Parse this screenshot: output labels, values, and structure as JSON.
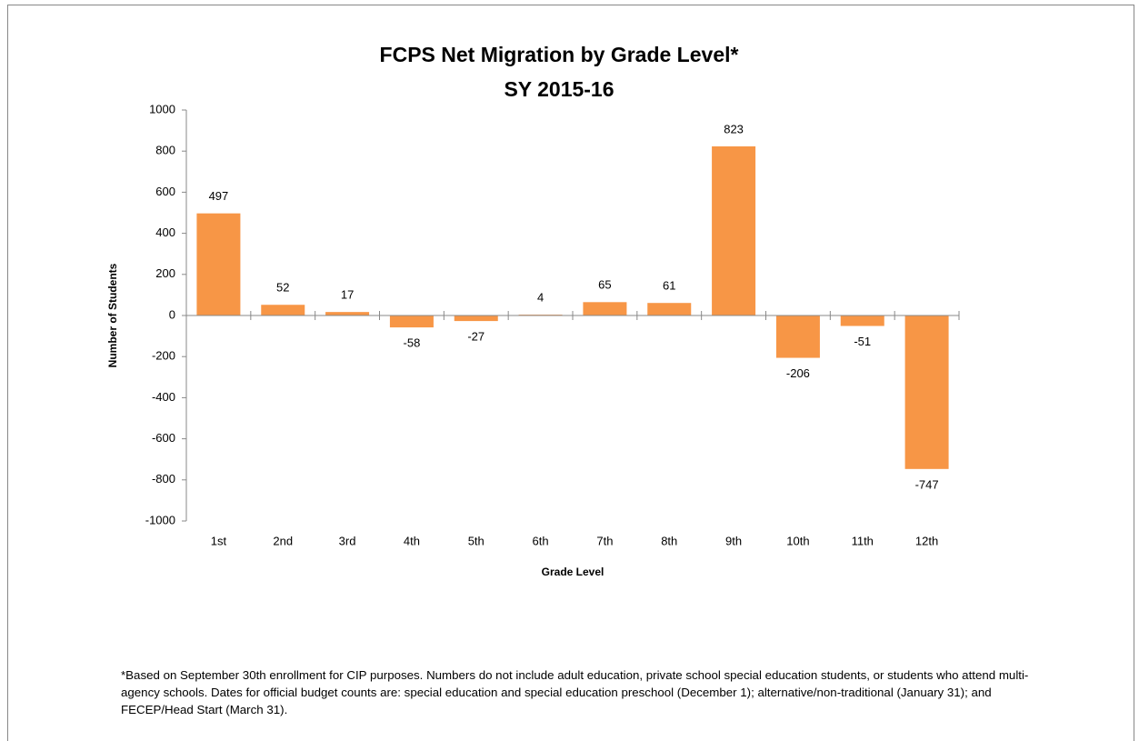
{
  "chart_data": {
    "type": "bar",
    "title": "FCPS Net Migration by Grade Level*",
    "subtitle": "SY 2015-16",
    "x_label": "Grade Level",
    "y_label": "Number of Students",
    "categories": [
      "1st",
      "2nd",
      "3rd",
      "4th",
      "5th",
      "6th",
      "7th",
      "8th",
      "9th",
      "10th",
      "11th",
      "12th"
    ],
    "values": [
      497,
      52,
      17,
      -58,
      -27,
      4,
      65,
      61,
      823,
      -206,
      -51,
      -747
    ],
    "color": "#f79646",
    "ylim": [
      -1000,
      1000
    ],
    "yticks": [
      -1000,
      -800,
      -600,
      -400,
      -200,
      0,
      200,
      400,
      600,
      800,
      1000
    ],
    "note": "*Based on September 30th enrollment for CIP purposes. Numbers do not include adult education, private school special education students, or students who attend multi-agency schools. Dates for official budget counts are: special education and special education preschool (December 1); alternative/non-traditional (January 31);  and FECEP/Head Start (March 31)."
  }
}
